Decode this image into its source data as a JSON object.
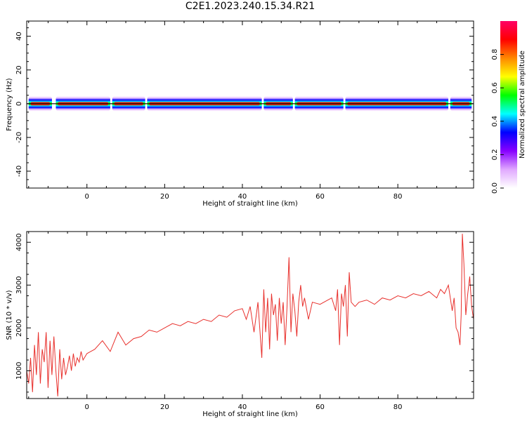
{
  "figure_title": "C2E1.2023.240.15.34.R21",
  "colors": {
    "snr_line": "#e8302c",
    "axis": "#000000",
    "colormap": [
      "#ffffff",
      "#e0a8ff",
      "#8800ff",
      "#0000ff",
      "#00ffff",
      "#00ff00",
      "#ffff00",
      "#ff8800",
      "#ff0000",
      "#ff0066"
    ]
  },
  "chart_data": [
    {
      "type": "heatmap",
      "title": "",
      "xlabel": "Height of straight line (km)",
      "ylabel": "Frequency (Hz)",
      "xlim": [
        -15.5,
        99.5
      ],
      "ylim": [
        -50,
        49
      ],
      "x_ticks": [
        0,
        20,
        40,
        60,
        80
      ],
      "y_ticks": [
        -40,
        -20,
        0,
        20,
        40
      ],
      "colorbar": {
        "label": "Normalized spectral amplitude",
        "range": [
          0,
          1
        ],
        "ticks": [
          0.0,
          0.2,
          0.4,
          0.6,
          0.8
        ]
      },
      "reference_line_hz": 0,
      "energy_band": {
        "center_hz": 0,
        "core_halfwidth_hz": 1,
        "outer_halfwidth_hz": 4.5,
        "segments_km": [
          [
            -15,
            -9
          ],
          [
            -8,
            6
          ],
          [
            6.5,
            15
          ],
          [
            15.5,
            45
          ],
          [
            45.5,
            53
          ],
          [
            53.5,
            66
          ],
          [
            66.5,
            93
          ],
          [
            93.5,
            99
          ]
        ]
      }
    },
    {
      "type": "line",
      "title": "",
      "xlabel": "Height of straight line (km)",
      "ylabel": "SNR (10 * v/v)",
      "xlim": [
        -15.5,
        99.5
      ],
      "ylim": [
        350,
        4250
      ],
      "x_ticks": [
        0,
        20,
        40,
        60,
        80
      ],
      "y_ticks": [
        1000,
        2000,
        3000,
        4000
      ],
      "series": [
        {
          "x": [
            -15.5,
            -15,
            -14.5,
            -14,
            -13.5,
            -13,
            -12.5,
            -12,
            -11.5,
            -11,
            -10.5,
            -10,
            -9.5,
            -9,
            -8.5,
            -8,
            -7.5,
            -7,
            -6.5,
            -6,
            -5.5,
            -5,
            -4.5,
            -4,
            -3.5,
            -3,
            -2.5,
            -2,
            -1.5,
            -1,
            0,
            2,
            4,
            6,
            8,
            10,
            12,
            14,
            16,
            18,
            20,
            22,
            24,
            26,
            28,
            30,
            32,
            34,
            36,
            38,
            40,
            41,
            42,
            43,
            44,
            45,
            45.5,
            46,
            46.5,
            47,
            47.5,
            48,
            48.5,
            49,
            49.5,
            50,
            50.5,
            51,
            51.5,
            52,
            52.5,
            53,
            53.5,
            54,
            54.5,
            55,
            55.5,
            56,
            57,
            58,
            60,
            62,
            63,
            64,
            64.5,
            65,
            65.5,
            66,
            66.5,
            67,
            67.5,
            68,
            69,
            70,
            72,
            74,
            76,
            78,
            80,
            82,
            84,
            86,
            88,
            90,
            91,
            92,
            93,
            94,
            94.5,
            95,
            95.5,
            96,
            96.3,
            96.6,
            97,
            97.5,
            98,
            98.5,
            99,
            99.5
          ],
          "y": [
            1000,
            700,
            1300,
            500,
            1600,
            900,
            1900,
            700,
            1500,
            1200,
            1900,
            600,
            1700,
            900,
            1800,
            1000,
            400,
            1500,
            800,
            1300,
            900,
            1100,
            1350,
            1000,
            1400,
            1100,
            1300,
            1200,
            1450,
            1250,
            1400,
            1500,
            1700,
            1450,
            1900,
            1600,
            1750,
            1800,
            1950,
            1900,
            2000,
            2100,
            2050,
            2150,
            2100,
            2200,
            2150,
            2300,
            2250,
            2400,
            2450,
            2200,
            2500,
            1900,
            2600,
            1300,
            2900,
            1900,
            2700,
            1500,
            2800,
            2300,
            2550,
            1700,
            2700,
            2100,
            2600,
            1600,
            2500,
            3650,
            1900,
            2800,
            2400,
            1800,
            2600,
            3000,
            2500,
            2700,
            2200,
            2600,
            2550,
            2650,
            2700,
            2400,
            2900,
            1600,
            2800,
            2500,
            3000,
            1800,
            3300,
            2600,
            2500,
            2600,
            2650,
            2550,
            2700,
            2650,
            2750,
            2700,
            2800,
            2750,
            2850,
            2700,
            2900,
            2800,
            3000,
            2400,
            2700,
            2000,
            1900,
            1600,
            2300,
            4200,
            3500,
            2300,
            2800,
            3200,
            2500,
            2200
          ]
        }
      ]
    }
  ]
}
